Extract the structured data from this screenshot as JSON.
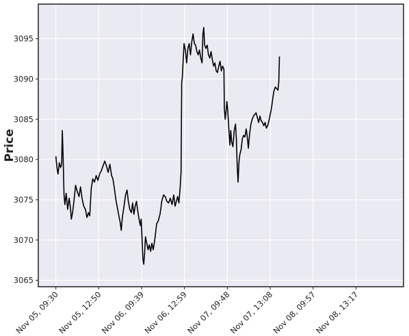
{
  "chart_data": {
    "type": "line",
    "title": "",
    "xlabel": "",
    "ylabel": "Price",
    "ylim": [
      3064.2,
      3099.3
    ],
    "yticks": [
      3065,
      3070,
      3075,
      3080,
      3085,
      3090,
      3095
    ],
    "grid": true,
    "legend": "none",
    "colors": {
      "plot_background": "#eaeaf2",
      "grid": "#ffffff",
      "line": "#000000",
      "axes_edge": "#222222"
    },
    "x_tick_labels": [
      "Nov 05, 09:30",
      "Nov 05, 12:50",
      "Nov 06, 09:39",
      "Nov 06, 12:59",
      "Nov 07, 09:48",
      "Nov 07, 13:08",
      "Nov 08, 09:57",
      "Nov 08, 13:17"
    ],
    "x_tick_index": [
      0,
      200,
      400,
      600,
      800,
      1000,
      1200,
      1400
    ],
    "x_range": [
      -82,
      1622
    ],
    "series": [
      {
        "values": [
          [
            0,
            3080.4
          ],
          [
            5,
            3079.0
          ],
          [
            10,
            3078.2
          ],
          [
            16,
            3079.6
          ],
          [
            22,
            3079.0
          ],
          [
            27,
            3079.4
          ],
          [
            30,
            3083.6
          ],
          [
            34,
            3080.2
          ],
          [
            38,
            3075.6
          ],
          [
            42,
            3074.4
          ],
          [
            48,
            3075.8
          ],
          [
            55,
            3073.8
          ],
          [
            62,
            3075.2
          ],
          [
            68,
            3074.0
          ],
          [
            72,
            3072.6
          ],
          [
            78,
            3073.4
          ],
          [
            85,
            3075.0
          ],
          [
            92,
            3076.8
          ],
          [
            100,
            3076.0
          ],
          [
            108,
            3075.4
          ],
          [
            115,
            3076.6
          ],
          [
            122,
            3075.2
          ],
          [
            130,
            3074.2
          ],
          [
            138,
            3073.8
          ],
          [
            145,
            3072.8
          ],
          [
            152,
            3073.4
          ],
          [
            158,
            3073.0
          ],
          [
            165,
            3076.4
          ],
          [
            172,
            3077.6
          ],
          [
            180,
            3077.2
          ],
          [
            188,
            3078.0
          ],
          [
            196,
            3077.4
          ],
          [
            204,
            3078.2
          ],
          [
            212,
            3078.6
          ],
          [
            220,
            3079.2
          ],
          [
            228,
            3079.8
          ],
          [
            236,
            3079.2
          ],
          [
            244,
            3078.4
          ],
          [
            252,
            3079.4
          ],
          [
            260,
            3078.0
          ],
          [
            266,
            3077.6
          ],
          [
            272,
            3076.6
          ],
          [
            280,
            3075.0
          ],
          [
            287,
            3074.0
          ],
          [
            294,
            3073.0
          ],
          [
            300,
            3072.2
          ],
          [
            305,
            3071.2
          ],
          [
            310,
            3072.8
          ],
          [
            318,
            3074.2
          ],
          [
            325,
            3075.6
          ],
          [
            332,
            3076.2
          ],
          [
            338,
            3074.8
          ],
          [
            345,
            3073.8
          ],
          [
            352,
            3073.4
          ],
          [
            358,
            3074.6
          ],
          [
            364,
            3073.2
          ],
          [
            370,
            3074.2
          ],
          [
            376,
            3074.8
          ],
          [
            382,
            3073.6
          ],
          [
            388,
            3072.6
          ],
          [
            394,
            3071.8
          ],
          [
            398,
            3072.6
          ],
          [
            402,
            3070.2
          ],
          [
            406,
            3067.6
          ],
          [
            410,
            3067.0
          ],
          [
            414,
            3068.4
          ],
          [
            418,
            3070.4
          ],
          [
            424,
            3069.6
          ],
          [
            430,
            3068.8
          ],
          [
            436,
            3069.4
          ],
          [
            442,
            3068.6
          ],
          [
            448,
            3069.6
          ],
          [
            454,
            3068.8
          ],
          [
            458,
            3069.4
          ],
          [
            464,
            3070.6
          ],
          [
            470,
            3072.0
          ],
          [
            478,
            3072.4
          ],
          [
            486,
            3073.2
          ],
          [
            494,
            3074.8
          ],
          [
            502,
            3075.6
          ],
          [
            510,
            3075.4
          ],
          [
            518,
            3074.8
          ],
          [
            526,
            3074.6
          ],
          [
            534,
            3075.2
          ],
          [
            542,
            3074.4
          ],
          [
            550,
            3075.6
          ],
          [
            556,
            3074.2
          ],
          [
            562,
            3074.8
          ],
          [
            568,
            3075.4
          ],
          [
            574,
            3074.6
          ],
          [
            580,
            3076.6
          ],
          [
            584,
            3078.4
          ],
          [
            587,
            3089.6
          ],
          [
            590,
            3090.2
          ],
          [
            594,
            3092.4
          ],
          [
            598,
            3094.4
          ],
          [
            604,
            3093.6
          ],
          [
            610,
            3092.0
          ],
          [
            616,
            3093.8
          ],
          [
            622,
            3094.4
          ],
          [
            628,
            3093.0
          ],
          [
            634,
            3094.6
          ],
          [
            640,
            3095.6
          ],
          [
            646,
            3094.4
          ],
          [
            652,
            3094.2
          ],
          [
            658,
            3093.4
          ],
          [
            664,
            3093.0
          ],
          [
            670,
            3093.6
          ],
          [
            676,
            3092.6
          ],
          [
            682,
            3092.0
          ],
          [
            686,
            3095.6
          ],
          [
            690,
            3096.4
          ],
          [
            694,
            3094.2
          ],
          [
            700,
            3093.8
          ],
          [
            706,
            3094.2
          ],
          [
            712,
            3093.0
          ],
          [
            718,
            3092.6
          ],
          [
            724,
            3093.4
          ],
          [
            730,
            3092.4
          ],
          [
            736,
            3091.6
          ],
          [
            742,
            3092.0
          ],
          [
            748,
            3091.0
          ],
          [
            754,
            3090.8
          ],
          [
            760,
            3091.6
          ],
          [
            766,
            3092.2
          ],
          [
            772,
            3091.0
          ],
          [
            778,
            3091.6
          ],
          [
            784,
            3091.2
          ],
          [
            786,
            3086.4
          ],
          [
            790,
            3085.0
          ],
          [
            794,
            3086.0
          ],
          [
            798,
            3087.2
          ],
          [
            802,
            3086.0
          ],
          [
            808,
            3083.4
          ],
          [
            812,
            3081.8
          ],
          [
            816,
            3083.6
          ],
          [
            820,
            3082.2
          ],
          [
            826,
            3081.6
          ],
          [
            832,
            3083.6
          ],
          [
            838,
            3084.4
          ],
          [
            842,
            3082.6
          ],
          [
            846,
            3079.2
          ],
          [
            850,
            3077.2
          ],
          [
            854,
            3079.6
          ],
          [
            858,
            3080.6
          ],
          [
            864,
            3081.2
          ],
          [
            870,
            3082.6
          ],
          [
            876,
            3083.0
          ],
          [
            882,
            3082.8
          ],
          [
            888,
            3083.8
          ],
          [
            894,
            3082.6
          ],
          [
            898,
            3081.4
          ],
          [
            904,
            3083.2
          ],
          [
            910,
            3084.4
          ],
          [
            916,
            3085.0
          ],
          [
            922,
            3085.4
          ],
          [
            928,
            3085.6
          ],
          [
            934,
            3085.8
          ],
          [
            940,
            3085.2
          ],
          [
            946,
            3084.6
          ],
          [
            952,
            3085.4
          ],
          [
            958,
            3084.8
          ],
          [
            964,
            3084.6
          ],
          [
            970,
            3084.2
          ],
          [
            976,
            3084.6
          ],
          [
            982,
            3083.9
          ],
          [
            988,
            3084.2
          ],
          [
            994,
            3084.8
          ],
          [
            1000,
            3085.6
          ],
          [
            1006,
            3086.4
          ],
          [
            1012,
            3087.6
          ],
          [
            1018,
            3088.6
          ],
          [
            1024,
            3089.0
          ],
          [
            1030,
            3088.8
          ],
          [
            1036,
            3088.6
          ],
          [
            1040,
            3089.6
          ],
          [
            1043,
            3092.8
          ]
        ]
      }
    ]
  }
}
